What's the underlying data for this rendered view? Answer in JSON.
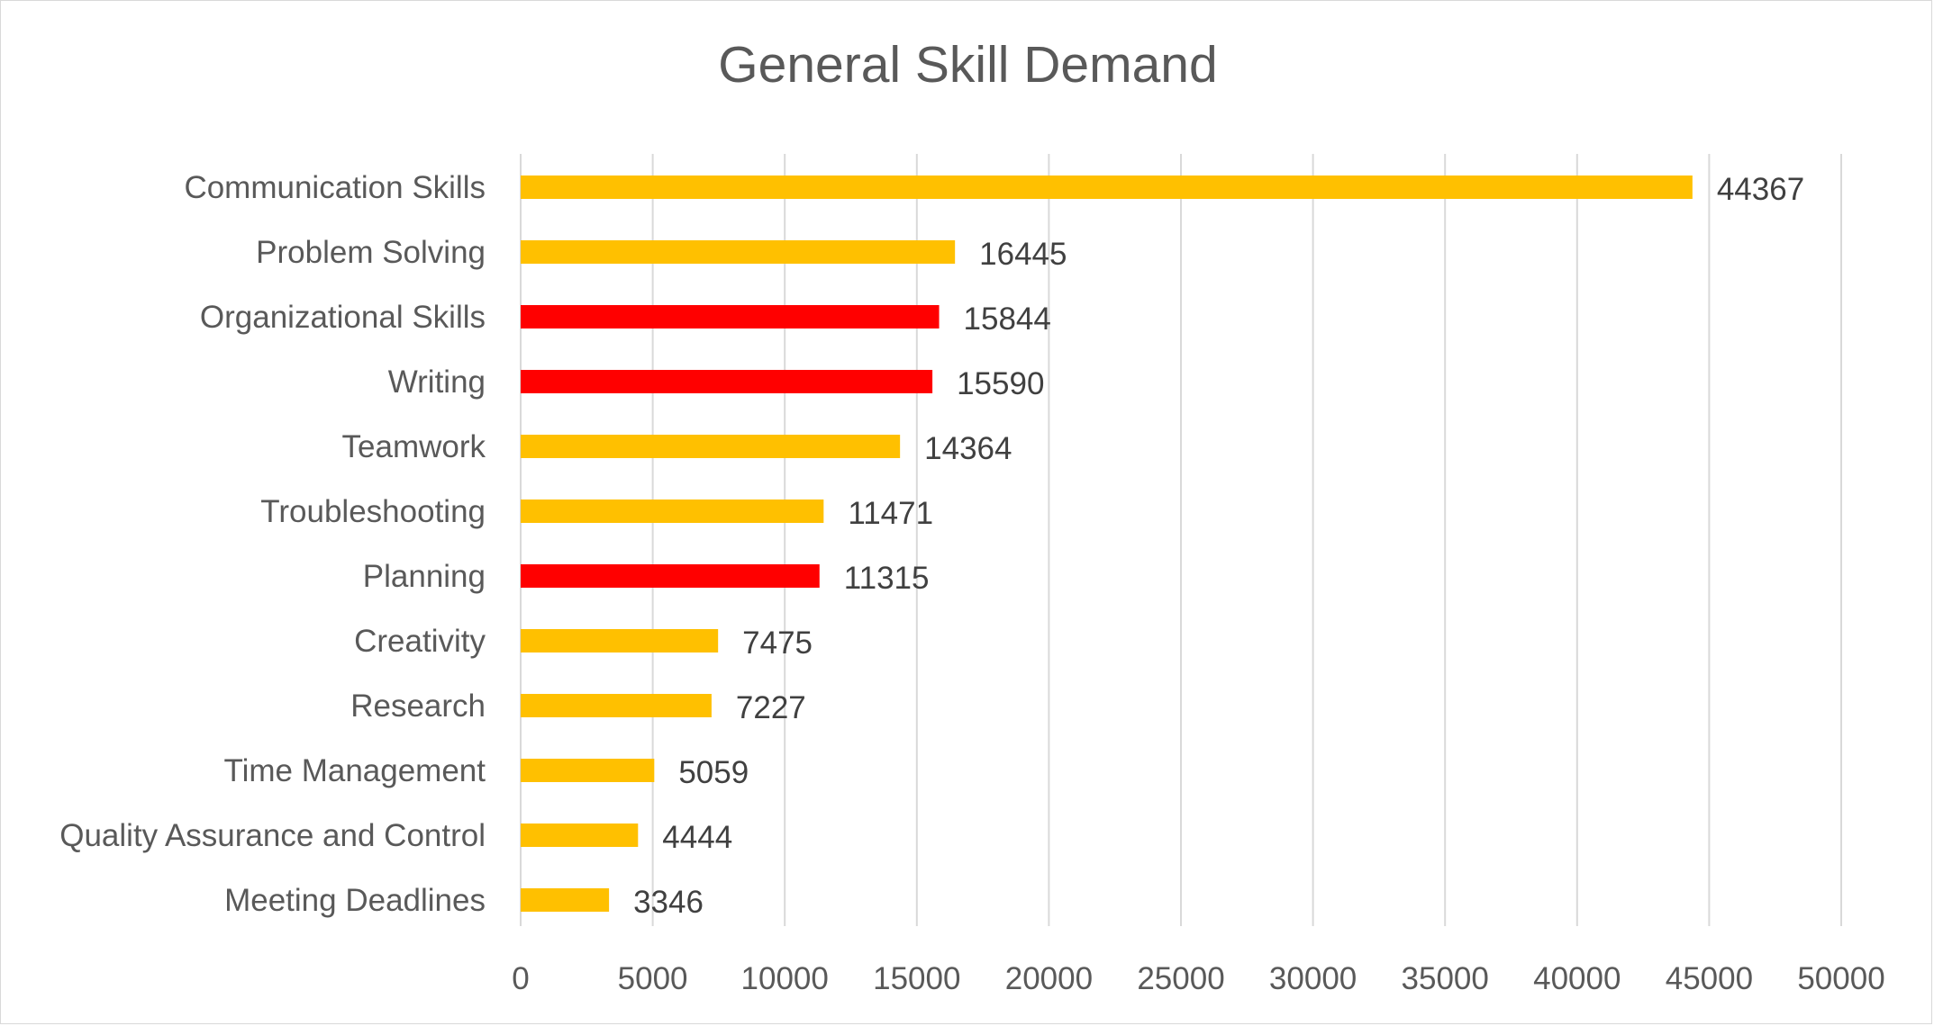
{
  "chart_data": {
    "type": "bar",
    "orientation": "horizontal",
    "title": "General Skill Demand",
    "categories": [
      "Communication Skills",
      "Problem Solving",
      "Organizational Skills",
      "Writing",
      "Teamwork",
      "Troubleshooting",
      "Planning",
      "Creativity",
      "Research",
      "Time Management",
      "Quality Assurance and Control",
      "Meeting Deadlines"
    ],
    "values": [
      44367,
      16445,
      15844,
      15590,
      14364,
      11471,
      11315,
      7475,
      7227,
      5059,
      4444,
      3346
    ],
    "bar_colors": [
      "#FFC000",
      "#FFC000",
      "#FF0000",
      "#FF0000",
      "#FFC000",
      "#FFC000",
      "#FF0000",
      "#FFC000",
      "#FFC000",
      "#FFC000",
      "#FFC000",
      "#FFC000"
    ],
    "xlim": [
      0,
      50000
    ],
    "xticks": [
      0,
      5000,
      10000,
      15000,
      20000,
      25000,
      30000,
      35000,
      40000,
      45000,
      50000
    ],
    "xlabel": "",
    "ylabel": "",
    "grid": "vertical",
    "legend": "none",
    "data_labels": true
  }
}
